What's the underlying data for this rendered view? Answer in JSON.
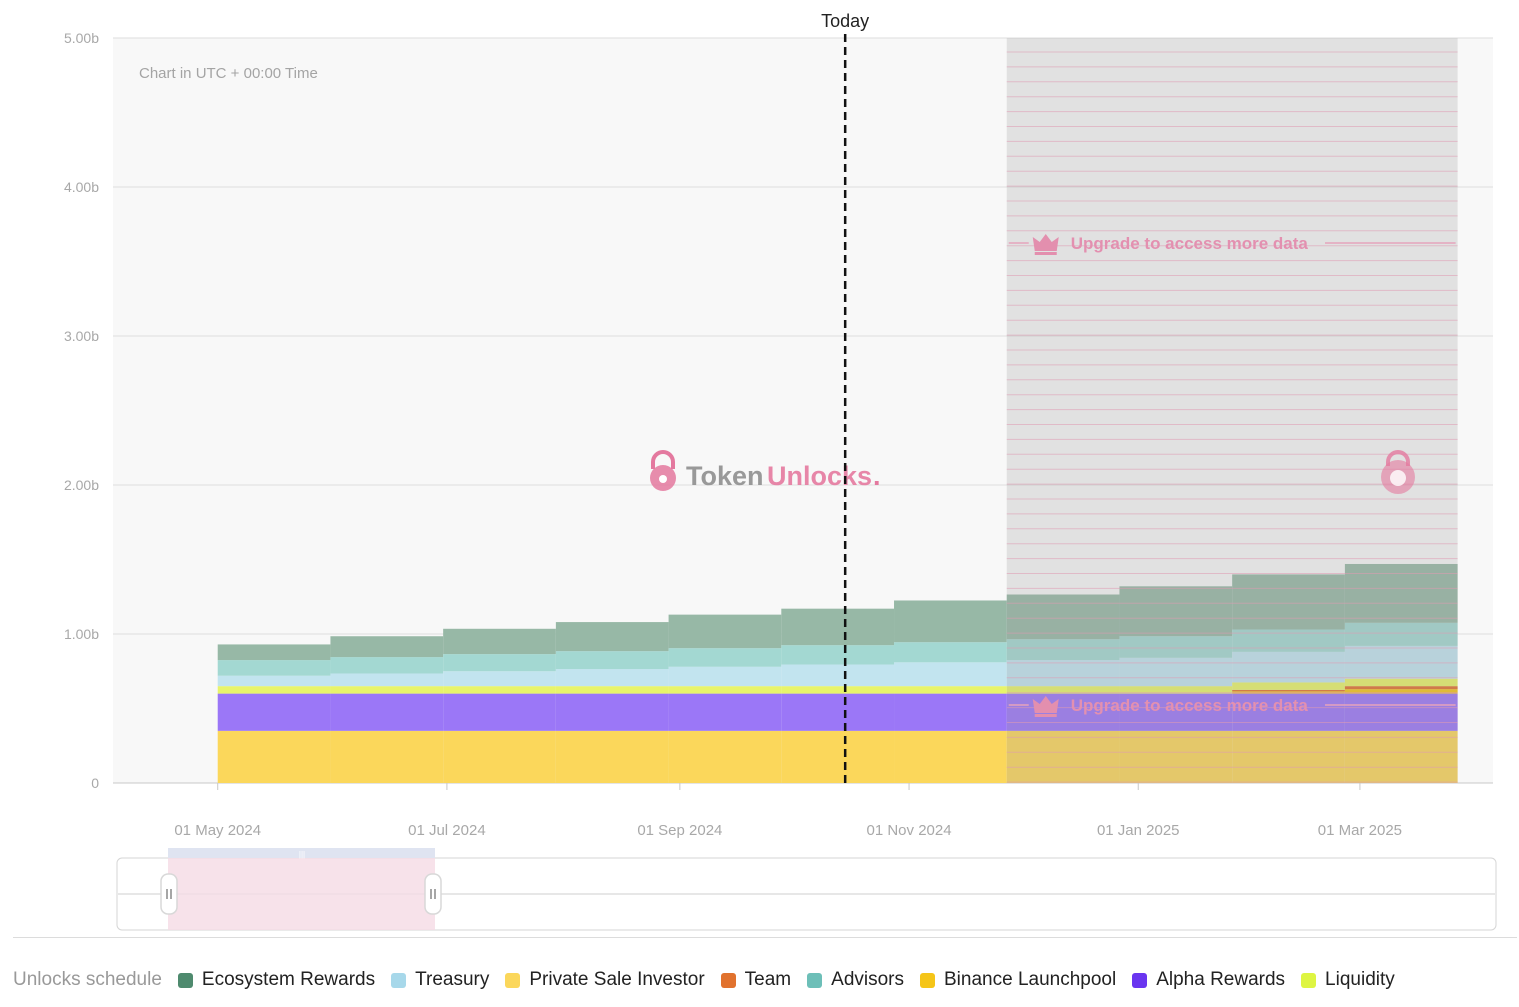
{
  "chart_data": {
    "type": "area",
    "subtitle": "Chart in UTC + 00:00 Time",
    "today_label": "Today",
    "today_date": "2024-10-15",
    "watermark": {
      "brand_a": "Token",
      "brand_b": "Unlocks",
      "dot": "."
    },
    "upgrade_text": "Upgrade to access more data",
    "legend_title": "Unlocks schedule",
    "x_ticks": [
      "01 May 2024",
      "01 Jul 2024",
      "01 Sep 2024",
      "01 Nov 2024",
      "01 Jan 2025",
      "01 Mar 2025"
    ],
    "y_ticks": [
      "0",
      "1.00b",
      "2.00b",
      "3.00b",
      "4.00b",
      "5.00b"
    ],
    "ylim": [
      0,
      5000000000
    ],
    "grid": true,
    "x": [
      "2024-05-01",
      "2024-05-31",
      "2024-06-30",
      "2024-07-30",
      "2024-08-29",
      "2024-09-28",
      "2024-10-28",
      "2024-11-27",
      "2024-12-27",
      "2025-01-26",
      "2025-02-25"
    ],
    "x_end": "2025-03-27",
    "locked_from": "2024-11-27",
    "series": [
      {
        "name": "Private Sale Investor",
        "color": "#fbd75b",
        "values": [
          350000000,
          350000000,
          350000000,
          350000000,
          350000000,
          350000000,
          350000000,
          350000000,
          350000000,
          350000000,
          350000000
        ]
      },
      {
        "name": "Alpha Rewards",
        "color": "#9b77f7",
        "values": [
          250000000,
          250000000,
          250000000,
          250000000,
          250000000,
          250000000,
          250000000,
          250000000,
          250000000,
          250000000,
          250000000
        ]
      },
      {
        "name": "Binance Launchpool",
        "color": "#f5c518",
        "values": [
          0,
          0,
          0,
          0,
          0,
          0,
          0,
          0,
          0,
          15000000,
          30000000
        ]
      },
      {
        "name": "Team",
        "color": "#e1722e",
        "values": [
          0,
          0,
          0,
          0,
          0,
          0,
          0,
          0,
          0,
          10000000,
          20000000
        ]
      },
      {
        "name": "Liquidity",
        "color": "#e8f46a",
        "values": [
          50000000,
          50000000,
          50000000,
          50000000,
          50000000,
          50000000,
          50000000,
          50000000,
          50000000,
          50000000,
          50000000
        ]
      },
      {
        "name": "Treasury",
        "color": "#c2e4ef",
        "values": [
          70000000,
          85000000,
          100000000,
          115000000,
          130000000,
          145000000,
          160000000,
          175000000,
          190000000,
          205000000,
          220000000
        ]
      },
      {
        "name": "Advisors",
        "color": "#a3d8d2",
        "values": [
          105000000,
          110000000,
          115000000,
          120000000,
          125000000,
          130000000,
          135000000,
          140000000,
          145000000,
          150000000,
          155000000
        ]
      },
      {
        "name": "Ecosystem Rewards",
        "color": "#97b8a6",
        "values": [
          105000000,
          140000000,
          170000000,
          195000000,
          225000000,
          245000000,
          280000000,
          300000000,
          335000000,
          370000000,
          395000000
        ]
      }
    ],
    "legend": [
      {
        "name": "Ecosystem Rewards",
        "color": "#4e8a6e"
      },
      {
        "name": "Treasury",
        "color": "#a7d8ea"
      },
      {
        "name": "Private Sale Investor",
        "color": "#fbd75b"
      },
      {
        "name": "Team",
        "color": "#e1722e"
      },
      {
        "name": "Advisors",
        "color": "#6dbfb8"
      },
      {
        "name": "Binance Launchpool",
        "color": "#f5c518"
      },
      {
        "name": "Alpha Rewards",
        "color": "#6a35f0"
      },
      {
        "name": "Liquidity",
        "color": "#def542"
      }
    ]
  }
}
